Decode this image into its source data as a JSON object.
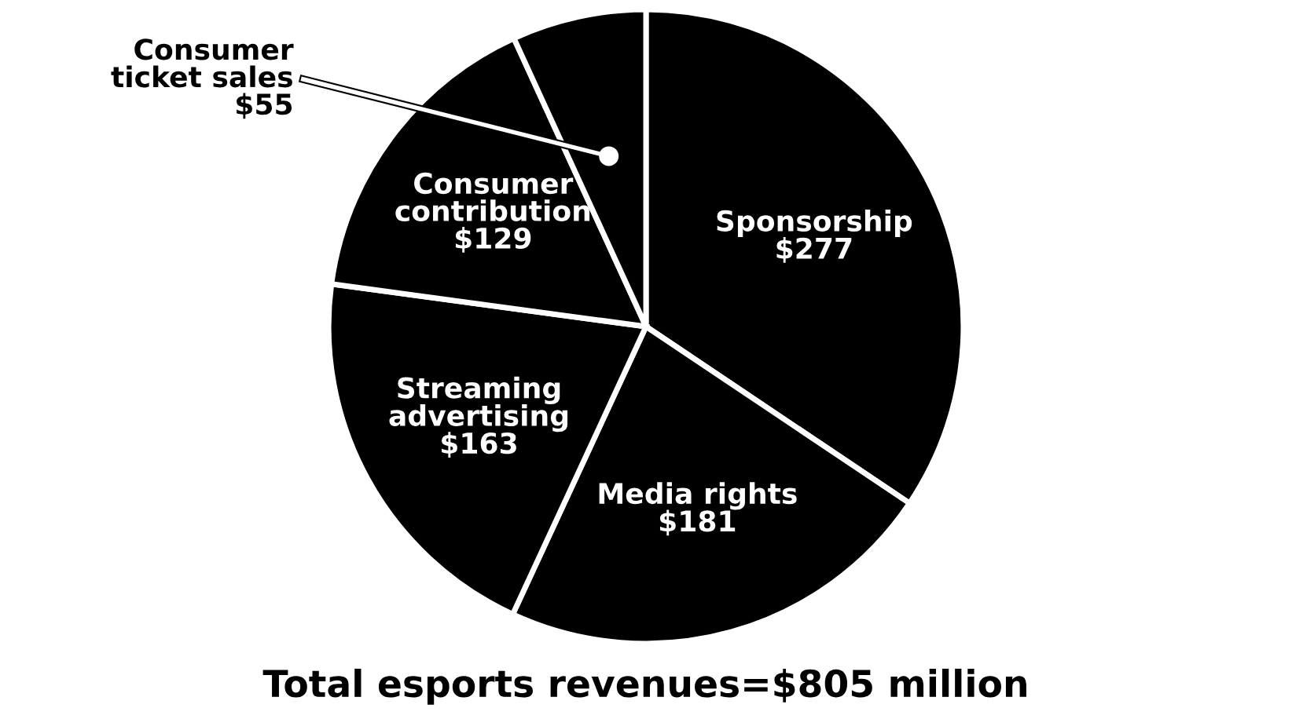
{
  "chart_data": {
    "type": "pie",
    "title": "Total esports revenues=$805 million",
    "categories": [
      "Sponsorship",
      "Media rights",
      "Streaming\nadvertising",
      "Consumer\ncontribution",
      "Consumer\nticket sales"
    ],
    "values": [
      277,
      181,
      163,
      129,
      55
    ],
    "value_labels": [
      "$277",
      "$181",
      "$163",
      "$129",
      "$55"
    ],
    "colors": [
      "#000000",
      "#000000",
      "#000000",
      "#000000",
      "#000000"
    ]
  }
}
